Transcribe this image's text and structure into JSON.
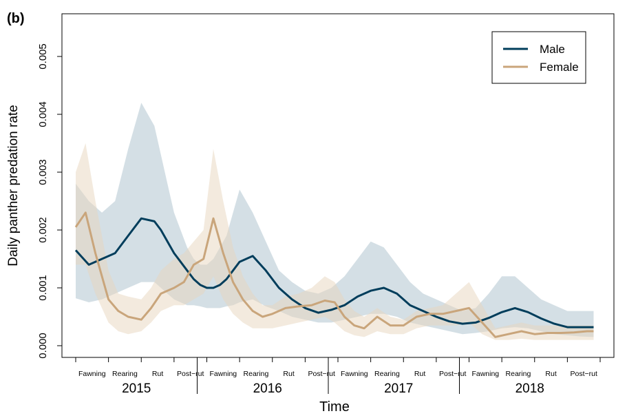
{
  "panel_label": "(b)",
  "chart_data": {
    "type": "line",
    "xlabel": "Time",
    "ylabel": "Daily panther predation rate",
    "ylim": [
      0,
      0.0057
    ],
    "yticks": [
      "0.000",
      "0.001",
      "0.002",
      "0.003",
      "0.004",
      "0.005"
    ],
    "ytick_values": [
      0,
      0.001,
      0.002,
      0.003,
      0.004,
      0.005
    ],
    "years": [
      "2015",
      "2016",
      "2017",
      "2018"
    ],
    "seasons": [
      "Fawning",
      "Rearing",
      "Rut",
      "Post−rut"
    ],
    "x_range": [
      0,
      16
    ],
    "legend_position": "top-right",
    "series": [
      {
        "name": "Male",
        "color": "#003d5b",
        "band_color": "#a9bfcc",
        "x": [
          0,
          0.4,
          0.8,
          1.2,
          1.6,
          2.0,
          2.4,
          2.6,
          2.8,
          3.0,
          3.2,
          3.4,
          3.6,
          3.8,
          4.0,
          4.2,
          4.4,
          4.6,
          4.8,
          5.0,
          5.4,
          5.8,
          6.2,
          6.6,
          7.0,
          7.4,
          7.8,
          8.2,
          8.6,
          9.0,
          9.4,
          9.8,
          10.2,
          10.6,
          11.0,
          11.4,
          11.8,
          12.2,
          12.6,
          13.0,
          13.4,
          13.8,
          14.2,
          14.6,
          15.0,
          15.4,
          15.8
        ],
        "y": [
          0.00165,
          0.0014,
          0.0015,
          0.0016,
          0.0019,
          0.0022,
          0.00215,
          0.002,
          0.0018,
          0.0016,
          0.00145,
          0.0013,
          0.00115,
          0.00105,
          0.001,
          0.001,
          0.00105,
          0.00115,
          0.0013,
          0.00145,
          0.00155,
          0.0013,
          0.001,
          0.0008,
          0.00065,
          0.00057,
          0.00062,
          0.0007,
          0.00085,
          0.00095,
          0.001,
          0.0009,
          0.0007,
          0.0006,
          0.0005,
          0.00042,
          0.00038,
          0.0004,
          0.00048,
          0.00058,
          0.00065,
          0.00058,
          0.00047,
          0.00038,
          0.00032,
          0.00032,
          0.00032
        ],
        "lower": [
          0.00082,
          0.00075,
          0.0008,
          0.0009,
          0.001,
          0.0011,
          0.0011,
          0.001,
          0.0009,
          0.0008,
          0.00075,
          0.0007,
          0.0007,
          0.00068,
          0.00065,
          0.00065,
          0.00065,
          0.00068,
          0.0007,
          0.00075,
          0.0008,
          0.00068,
          0.0006,
          0.0005,
          0.00045,
          0.0004,
          0.0004,
          0.00045,
          0.0005,
          0.00055,
          0.00055,
          0.0005,
          0.0004,
          0.00035,
          0.0003,
          0.00025,
          0.0002,
          0.00022,
          0.00025,
          0.0003,
          0.00032,
          0.0003,
          0.00025,
          0.0002,
          0.00018,
          0.00016,
          0.00015
        ],
        "upper": [
          0.0028,
          0.0025,
          0.0023,
          0.0025,
          0.0034,
          0.0042,
          0.0038,
          0.0033,
          0.0028,
          0.0023,
          0.002,
          0.0017,
          0.0015,
          0.0014,
          0.0014,
          0.0015,
          0.0017,
          0.0019,
          0.0023,
          0.0027,
          0.0023,
          0.0018,
          0.0013,
          0.0011,
          0.00095,
          0.0009,
          0.001,
          0.0012,
          0.0015,
          0.0018,
          0.0017,
          0.0014,
          0.0011,
          0.0009,
          0.0008,
          0.0007,
          0.0006,
          0.00065,
          0.0009,
          0.0012,
          0.0012,
          0.001,
          0.0008,
          0.0007,
          0.0006,
          0.0006,
          0.0006
        ]
      },
      {
        "name": "Female",
        "color": "#c9a57b",
        "band_color": "#e8d6bd",
        "x": [
          0,
          0.3,
          0.6,
          1.0,
          1.3,
          1.6,
          2.0,
          2.3,
          2.6,
          3.0,
          3.3,
          3.6,
          3.9,
          4.2,
          4.5,
          4.8,
          5.1,
          5.4,
          5.7,
          6.0,
          6.4,
          6.8,
          7.2,
          7.6,
          7.9,
          8.2,
          8.5,
          8.8,
          9.2,
          9.6,
          10.0,
          10.4,
          10.8,
          11.2,
          11.6,
          12.0,
          12.4,
          12.8,
          13.2,
          13.6,
          14.0,
          14.4,
          14.8,
          15.2,
          15.6,
          15.8
        ],
        "y": [
          0.00205,
          0.0023,
          0.0016,
          0.0008,
          0.0006,
          0.0005,
          0.00045,
          0.00065,
          0.0009,
          0.001,
          0.0011,
          0.0014,
          0.0015,
          0.0022,
          0.0016,
          0.0011,
          0.0008,
          0.0006,
          0.0005,
          0.00055,
          0.00065,
          0.00068,
          0.0007,
          0.00078,
          0.00075,
          0.0005,
          0.00035,
          0.0003,
          0.0005,
          0.00035,
          0.00035,
          0.0005,
          0.00055,
          0.00055,
          0.0006,
          0.00065,
          0.0004,
          0.00015,
          0.0002,
          0.00025,
          0.0002,
          0.00022,
          0.00022,
          0.00023,
          0.00025,
          0.00025
        ],
        "lower": [
          0.0014,
          0.0014,
          0.0009,
          0.0004,
          0.00025,
          0.0002,
          0.00025,
          0.0004,
          0.0006,
          0.0007,
          0.0007,
          0.0008,
          0.0009,
          0.0012,
          0.0008,
          0.00055,
          0.0004,
          0.0003,
          0.0003,
          0.0003,
          0.00035,
          0.0004,
          0.00045,
          0.0005,
          0.0004,
          0.00025,
          0.00018,
          0.00015,
          0.00025,
          0.0002,
          0.0002,
          0.0003,
          0.00035,
          0.00035,
          0.00035,
          0.0004,
          0.0002,
          0.0001,
          0.0001,
          0.00012,
          0.0001,
          0.0001,
          0.0001,
          0.0001,
          0.0001,
          0.0001
        ],
        "upper": [
          0.003,
          0.0035,
          0.0025,
          0.0013,
          0.0009,
          0.00085,
          0.0008,
          0.001,
          0.0013,
          0.0015,
          0.0016,
          0.0018,
          0.002,
          0.0034,
          0.0025,
          0.0017,
          0.0012,
          0.0009,
          0.0007,
          0.0007,
          0.00085,
          0.0009,
          0.001,
          0.0012,
          0.0011,
          0.0008,
          0.0006,
          0.0005,
          0.00065,
          0.0005,
          0.00045,
          0.0006,
          0.00065,
          0.0007,
          0.0009,
          0.0011,
          0.0007,
          0.0003,
          0.00035,
          0.0004,
          0.00035,
          0.00035,
          0.00035,
          0.00035,
          0.00035,
          0.00035
        ]
      }
    ]
  }
}
